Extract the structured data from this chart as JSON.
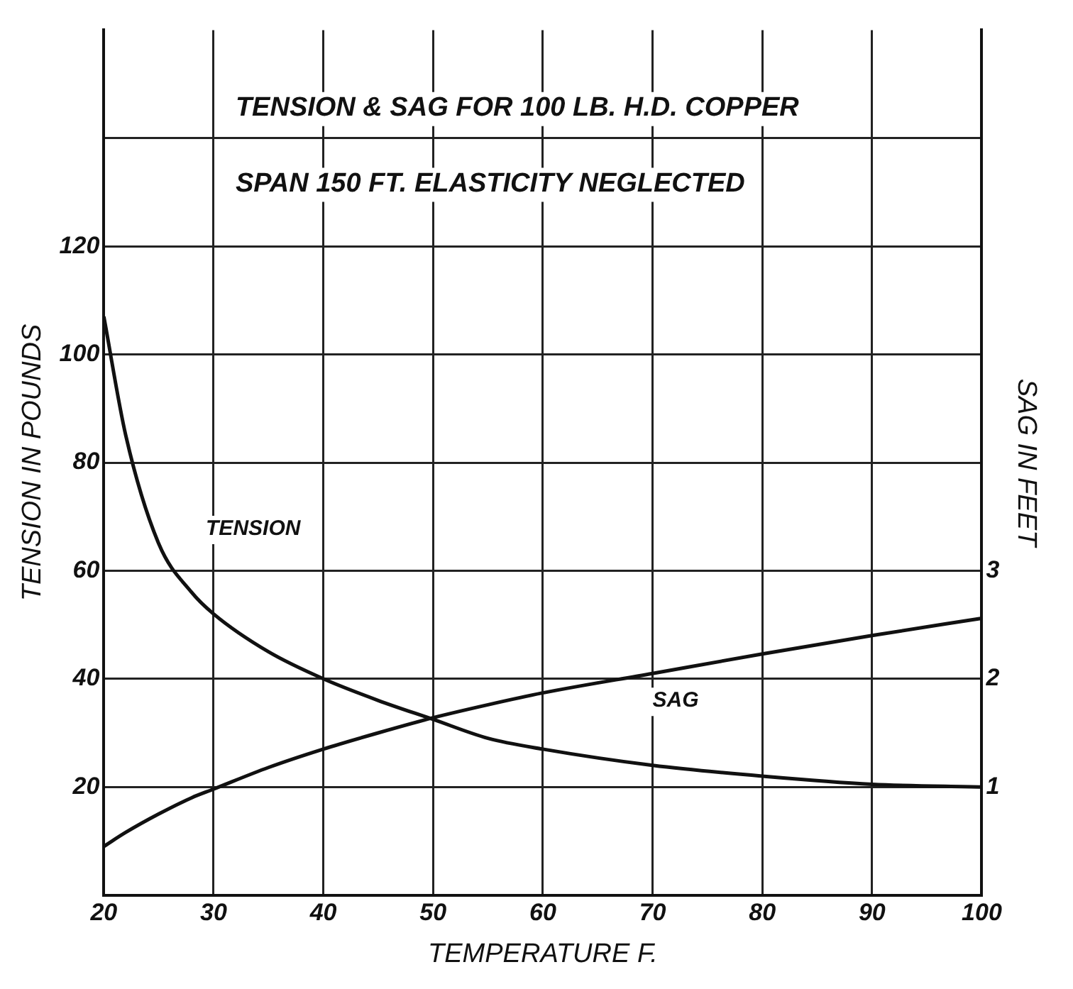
{
  "chart_data": {
    "type": "line",
    "title": "TENSION & SAG FOR 100 LB. H.D. COPPER",
    "subtitle": "SPAN 150 FT. ELASTICITY NEGLECTED",
    "xlabel": "TEMPERATURE F.",
    "ylabel": "TENSION IN POUNDS",
    "y2label": "SAG IN FEET",
    "x": [
      20,
      22,
      25,
      28,
      30,
      35,
      40,
      45,
      50,
      55,
      60,
      70,
      80,
      90,
      100
    ],
    "series": [
      {
        "name": "TENSION",
        "color": "#111111",
        "values": [
          107,
          85,
          65,
          56,
          52,
          45,
          40,
          36,
          32.5,
          29,
          27,
          24,
          22,
          20.5,
          20
        ]
      },
      {
        "name": "SAG",
        "color": "#111111",
        "axis": "y2",
        "values": [
          0.45,
          0.58,
          0.75,
          0.9,
          0.98,
          1.18,
          1.35,
          1.5,
          1.64,
          1.76,
          1.87,
          2.05,
          2.23,
          2.4,
          2.56
        ]
      }
    ],
    "xlim": [
      20,
      100
    ],
    "xticks": [
      20,
      30,
      40,
      50,
      60,
      70,
      80,
      90,
      100
    ],
    "ylim": [
      0,
      160
    ],
    "yticks": [
      20,
      40,
      60,
      80,
      100,
      120,
      {
        "value": 140,
        "label": null
      }
    ],
    "y2lim": [
      0,
      8
    ],
    "y2ticks": [
      1,
      2,
      3
    ],
    "grid": true,
    "legend": false,
    "marker": "none",
    "line_style": "solid"
  }
}
